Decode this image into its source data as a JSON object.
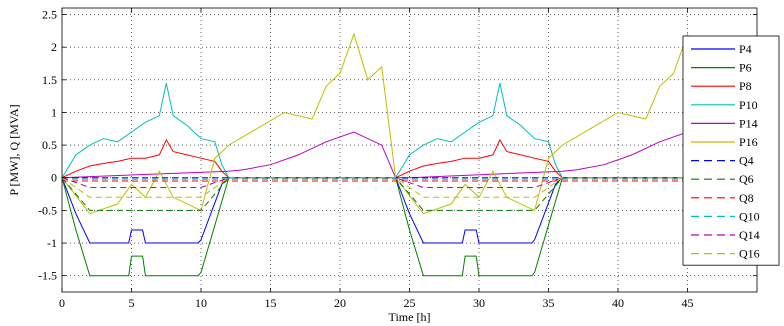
{
  "chart_data": {
    "type": "line",
    "xlabel": "Time [h]",
    "ylabel": "P [MW], Q [MVA]",
    "xlim": [
      0,
      50
    ],
    "ylim": [
      -1.75,
      2.6
    ],
    "xticks": [
      0,
      5,
      10,
      15,
      20,
      25,
      30,
      35,
      40,
      45
    ],
    "yticks": [
      -1.5,
      -1,
      -0.5,
      0,
      0.5,
      1,
      1.5,
      2,
      2.5
    ],
    "ytick_labels": [
      "-1.5",
      "-1",
      "-0.5",
      "0",
      "0.5",
      "1",
      "1.5",
      "2",
      "2.5"
    ],
    "grid": true,
    "legend_position": "right",
    "series": [
      {
        "name": "P4",
        "color": "#0000ff",
        "style": "solid",
        "x": [
          0,
          1,
          2,
          4.8,
          5,
          5.8,
          6,
          9.8,
          10,
          11.5,
          12,
          24,
          25,
          26,
          28.8,
          29,
          29.8,
          30,
          33.8,
          34,
          35.5,
          36,
          48
        ],
        "y": [
          0,
          -0.55,
          -1,
          -1,
          -0.8,
          -0.8,
          -1,
          -1,
          -0.95,
          -0.1,
          0,
          0,
          -0.55,
          -1,
          -1,
          -0.8,
          -0.8,
          -1,
          -1,
          -0.95,
          -0.1,
          0,
          0
        ]
      },
      {
        "name": "P6",
        "color": "#008000",
        "style": "solid",
        "x": [
          0,
          1,
          2,
          4.8,
          5,
          5.8,
          6,
          9.8,
          10,
          12,
          24,
          25,
          26,
          28.8,
          29,
          29.8,
          30,
          33.8,
          34,
          36,
          48
        ],
        "y": [
          0,
          -0.8,
          -1.5,
          -1.5,
          -1.2,
          -1.2,
          -1.5,
          -1.5,
          -1.45,
          0,
          0,
          -0.8,
          -1.5,
          -1.5,
          -1.2,
          -1.2,
          -1.5,
          -1.5,
          -1.45,
          0,
          0
        ]
      },
      {
        "name": "P8",
        "color": "#ff0000",
        "style": "solid",
        "x": [
          0,
          1,
          2,
          3,
          4,
          5,
          6,
          7,
          7.5,
          8,
          9,
          10,
          11,
          11.5,
          12,
          24,
          25,
          26,
          27,
          28,
          29,
          30,
          31,
          31.5,
          32,
          33,
          34,
          35,
          35.5,
          36,
          48
        ],
        "y": [
          0,
          0.1,
          0.18,
          0.22,
          0.25,
          0.3,
          0.3,
          0.35,
          0.58,
          0.4,
          0.35,
          0.3,
          0.25,
          0.1,
          0,
          0,
          0.1,
          0.18,
          0.22,
          0.25,
          0.3,
          0.3,
          0.35,
          0.58,
          0.4,
          0.35,
          0.3,
          0.25,
          0.1,
          0,
          0
        ]
      },
      {
        "name": "P10",
        "color": "#00bfbf",
        "style": "solid",
        "x": [
          0,
          1,
          2,
          3,
          4,
          5,
          6,
          7,
          7.5,
          8,
          9,
          10,
          11,
          11.5,
          12,
          24,
          25,
          26,
          27,
          28,
          29,
          30,
          31,
          31.5,
          32,
          33,
          34,
          35,
          35.5,
          36,
          48
        ],
        "y": [
          0,
          0.35,
          0.5,
          0.6,
          0.55,
          0.7,
          0.85,
          0.95,
          1.45,
          0.95,
          0.8,
          0.6,
          0.55,
          0.2,
          0,
          0,
          0.35,
          0.5,
          0.6,
          0.55,
          0.7,
          0.85,
          0.95,
          1.45,
          0.95,
          0.8,
          0.6,
          0.55,
          0.2,
          0,
          0
        ]
      },
      {
        "name": "P14",
        "color": "#bf00bf",
        "style": "solid",
        "x": [
          0,
          12,
          13,
          15,
          17,
          19,
          21,
          23,
          24,
          25,
          36,
          37,
          39,
          41,
          43,
          45,
          47,
          48
        ],
        "y": [
          0,
          0.1,
          0.12,
          0.2,
          0.35,
          0.55,
          0.7,
          0.5,
          0,
          0,
          0.1,
          0.12,
          0.2,
          0.35,
          0.55,
          0.7,
          0.5,
          0.5
        ]
      },
      {
        "name": "P16",
        "color": "#bfbf00",
        "style": "solid",
        "x": [
          0,
          2,
          4,
          5,
          6,
          7,
          8,
          10,
          11,
          12,
          14,
          16,
          18,
          19,
          20,
          21,
          22,
          23,
          24,
          26,
          28,
          29,
          30,
          31,
          32,
          34,
          35,
          36,
          38,
          40,
          42,
          43,
          44,
          45,
          46,
          47,
          48
        ],
        "y": [
          0,
          -0.55,
          -0.4,
          -0.1,
          -0.3,
          0.1,
          -0.3,
          -0.5,
          0.3,
          0.5,
          0.75,
          1.0,
          0.9,
          1.4,
          1.6,
          2.2,
          1.5,
          1.7,
          0,
          -0.55,
          -0.4,
          -0.1,
          -0.3,
          0.1,
          -0.3,
          -0.5,
          0.3,
          0.5,
          0.75,
          1.0,
          0.9,
          1.4,
          1.6,
          2.2,
          1.5,
          1.7,
          1.3
        ]
      },
      {
        "name": "Q4",
        "color": "#0000ff",
        "style": "dashed",
        "x": [
          0,
          48
        ],
        "y": [
          0,
          0
        ]
      },
      {
        "name": "Q6",
        "color": "#008000",
        "style": "dashed",
        "x": [
          0,
          2,
          10,
          12,
          24,
          26,
          34,
          36,
          48
        ],
        "y": [
          0,
          -0.5,
          -0.5,
          0,
          0,
          -0.5,
          -0.5,
          0,
          0
        ]
      },
      {
        "name": "Q8",
        "color": "#ff0000",
        "style": "dashed",
        "x": [
          0,
          48
        ],
        "y": [
          -0.05,
          -0.05
        ]
      },
      {
        "name": "Q10",
        "color": "#00bfbf",
        "style": "dashed",
        "x": [
          0,
          48
        ],
        "y": [
          -0.02,
          -0.02
        ]
      },
      {
        "name": "Q14",
        "color": "#bf00bf",
        "style": "dashed",
        "x": [
          0,
          2,
          10,
          12,
          24,
          26,
          34,
          36,
          48
        ],
        "y": [
          0,
          -0.15,
          -0.15,
          0,
          0,
          -0.15,
          -0.15,
          0,
          0
        ]
      },
      {
        "name": "Q16",
        "color": "#bfbf00",
        "style": "dashed",
        "x": [
          0,
          2,
          10,
          12,
          24,
          26,
          34,
          36,
          48
        ],
        "y": [
          0,
          -0.3,
          -0.3,
          0,
          0,
          -0.3,
          -0.3,
          0,
          0
        ]
      }
    ]
  }
}
